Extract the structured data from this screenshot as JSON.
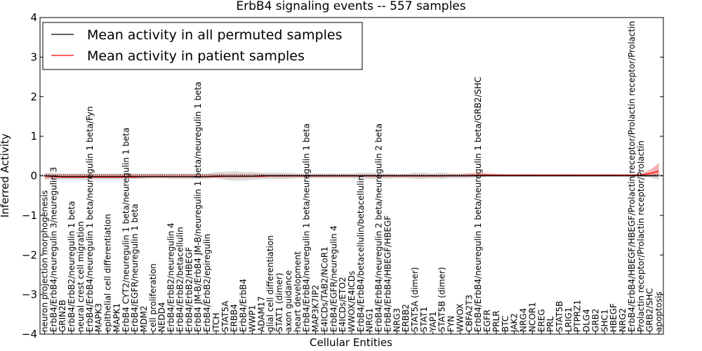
{
  "chart_data": {
    "type": "line",
    "title": "ErbB4 signaling events -- 557 samples",
    "xlabel": "Cellular Entities",
    "ylabel": "Inferred Activity",
    "ylim": [
      -4,
      4
    ],
    "yticks": [
      -4,
      -3,
      -2,
      -1,
      0,
      1,
      2,
      3,
      4
    ],
    "grid": false,
    "legend_position": "top-left",
    "legend": [
      {
        "label": "Mean activity in all permuted samples",
        "color": "#000000"
      },
      {
        "label": "Mean activity in patient samples",
        "color": "#ff0000"
      }
    ],
    "categories": [
      "neuron projection morphogenesis",
      "ErbB4/ErbB4/neuregulin 3/neuregulin 3",
      "GRIN2B",
      "ErbB4/ErbB2/neuregulin 1 beta",
      "neural crest cell migration",
      "ErbB4/ErbB4/neuregulin 1 beta/neuregulin 1 beta/Fyn",
      "MAPK3",
      "epithelial cell differentiation",
      "MAPK1",
      "ErbB4 CYT2/neuregulin 1 beta/neuregulin 1 beta",
      "ErbB4/EGFR/neuregulin 1 beta",
      "MDM2",
      "cell proliferation",
      "NEDD4",
      "ErbB4/ErbB2/neuregulin 4",
      "ErbB4/ErbB2/betacellulin",
      "ErbB4/ErbB2/HBEGF",
      "ErbB4 JM-B/ErbB4 JM-B/neuregulin 1 beta/neuregulin 1 beta",
      "ErbB4/ErbB2/epiregulin",
      "ITCH",
      "STAT5A",
      "ERBB4",
      "ErbB4/ErbB4",
      "WWP1",
      "ADAM17",
      "glial cell differentiation",
      "STAT1 (dimer)",
      "axon guidance",
      "heart development",
      "ErbB4/ErbB4/neuregulin 1 beta/neuregulin 1 beta",
      "MAP3K7IP2",
      "E4ICDs/TAB2/NCoR1",
      "ErbB4/EGFR/neuregulin 4",
      "E4ICDs/ETO2",
      "WWOX/E4ICDs",
      "ErbB4/ErbB4/betacellulin/betacellulin",
      "NRG1",
      "ErbB4/ErbB4/neuregulin 2 beta/neuregulin 2 beta",
      "ErbB4/ErbB4/HBEGF/HBEGF",
      "NRG3",
      "ERBB2",
      "STAT5A (dimer)",
      "STAT1",
      "YAP1",
      "STAT5B (dimer)",
      "FYN",
      "WWOX",
      "CBFA2T3",
      "ErbB4/ErbB4/neuregulin 1 beta/neuregulin 1 beta/GRB2/SHC",
      "EGFR",
      "PRLR",
      "BTC",
      "JAK2",
      "NRG4",
      "NCOR1",
      "EREG",
      "PRL",
      "STAT5B",
      "LRIG1",
      "PTPRZ1",
      "DLG4",
      "GRB2",
      "SHC1",
      "HBEGF",
      "NRG2",
      "ErbB4/ErbB4/HBEGF/HBEGF/Prolactin receptor/Prolactin receptor/Prolactin",
      "Prolactin receptor/Prolactin receptor/Prolactin",
      "GRB2/SHC",
      "apoptosis"
    ],
    "series": [
      {
        "name": "Mean activity in all permuted samples",
        "color": "#000000",
        "values": [
          0.0,
          -0.01,
          -0.02,
          -0.02,
          -0.02,
          -0.02,
          -0.02,
          -0.02,
          -0.02,
          -0.02,
          -0.02,
          -0.02,
          -0.02,
          -0.02,
          -0.02,
          -0.02,
          -0.02,
          -0.02,
          -0.02,
          -0.01,
          -0.01,
          -0.01,
          -0.01,
          -0.01,
          0.0,
          0.0,
          0.0,
          0.0,
          0.0,
          0.0,
          0.0,
          0.0,
          0.0,
          0.0,
          0.0,
          0.0,
          0.0,
          0.0,
          0.0,
          0.0,
          0.0,
          0.0,
          0.0,
          0.0,
          0.0,
          0.0,
          0.0,
          0.0,
          0.0,
          0.0,
          0.0,
          0.0,
          0.0,
          0.0,
          0.0,
          0.0,
          0.0,
          0.0,
          0.0,
          0.0,
          0.0,
          0.0,
          0.0,
          0.0,
          0.0,
          0.0,
          0.0,
          0.0,
          0.0
        ],
        "band_low": [
          -0.1,
          -0.1,
          -0.1,
          -0.1,
          -0.1,
          -0.1,
          -0.1,
          -0.1,
          -0.1,
          -0.08,
          -0.08,
          -0.08,
          -0.06,
          -0.06,
          -0.08,
          -0.08,
          -0.08,
          -0.08,
          -0.08,
          -0.06,
          -0.1,
          -0.12,
          -0.12,
          -0.1,
          -0.08,
          -0.08,
          -0.08,
          -0.08,
          -0.06,
          -0.06,
          -0.06,
          -0.06,
          -0.06,
          -0.06,
          -0.06,
          -0.08,
          -0.08,
          -0.08,
          -0.08,
          -0.06,
          -0.06,
          -0.08,
          -0.08,
          -0.06,
          -0.08,
          -0.06,
          -0.06,
          -0.06,
          -0.04,
          -0.02,
          -0.02,
          -0.02,
          -0.02,
          -0.02,
          -0.02,
          -0.02,
          -0.02,
          -0.02,
          -0.02,
          -0.02,
          -0.02,
          -0.02,
          -0.02,
          -0.02,
          -0.02,
          -0.02,
          -0.02,
          -0.04,
          -0.1
        ],
        "band_high": [
          0.08,
          0.08,
          0.06,
          0.06,
          0.06,
          0.06,
          0.06,
          0.06,
          0.06,
          0.06,
          0.06,
          0.06,
          0.06,
          0.06,
          0.06,
          0.06,
          0.06,
          0.06,
          0.06,
          0.1,
          0.1,
          0.12,
          0.1,
          0.1,
          0.08,
          0.08,
          0.08,
          0.08,
          0.06,
          0.06,
          0.06,
          0.06,
          0.06,
          0.06,
          0.06,
          0.08,
          0.08,
          0.06,
          0.06,
          0.05,
          0.05,
          0.08,
          0.08,
          0.06,
          0.08,
          0.06,
          0.06,
          0.06,
          0.04,
          0.04,
          0.02,
          0.02,
          0.02,
          0.02,
          0.02,
          0.02,
          0.02,
          0.02,
          0.02,
          0.02,
          0.02,
          0.02,
          0.02,
          0.02,
          0.02,
          0.02,
          0.02,
          0.04,
          0.1
        ]
      },
      {
        "name": "Mean activity in patient samples",
        "color": "#ff0000",
        "values": [
          0.0,
          -0.02,
          -0.03,
          -0.03,
          -0.03,
          -0.03,
          -0.03,
          -0.03,
          -0.03,
          -0.03,
          -0.03,
          -0.02,
          -0.02,
          -0.02,
          -0.02,
          -0.02,
          -0.02,
          -0.02,
          -0.02,
          -0.02,
          -0.01,
          -0.01,
          -0.01,
          -0.01,
          -0.01,
          0.0,
          0.0,
          0.0,
          0.0,
          0.0,
          0.0,
          0.0,
          0.0,
          0.0,
          0.0,
          0.0,
          0.0,
          0.0,
          0.0,
          0.0,
          0.0,
          0.0,
          0.0,
          0.0,
          0.0,
          0.0,
          0.0,
          0.0,
          0.02,
          0.02,
          0.02,
          0.02,
          0.02,
          0.02,
          0.02,
          0.02,
          0.02,
          0.02,
          0.02,
          0.02,
          0.02,
          0.02,
          0.02,
          0.02,
          0.02,
          0.02,
          0.02,
          0.06,
          0.12
        ],
        "band_low": [
          -0.06,
          -0.06,
          -0.06,
          -0.06,
          -0.06,
          -0.06,
          -0.06,
          -0.06,
          -0.06,
          -0.06,
          -0.06,
          -0.05,
          -0.05,
          -0.05,
          -0.05,
          -0.05,
          -0.05,
          -0.05,
          -0.05,
          -0.05,
          -0.05,
          -0.05,
          -0.05,
          -0.04,
          -0.04,
          -0.03,
          -0.03,
          -0.03,
          -0.03,
          -0.03,
          -0.03,
          -0.03,
          -0.03,
          -0.03,
          -0.03,
          -0.03,
          -0.03,
          -0.03,
          -0.03,
          -0.03,
          -0.03,
          -0.03,
          -0.03,
          -0.03,
          -0.03,
          -0.02,
          -0.02,
          -0.02,
          -0.01,
          -0.01,
          0.0,
          0.0,
          0.0,
          0.0,
          0.0,
          0.0,
          0.0,
          0.0,
          0.0,
          0.0,
          0.0,
          0.0,
          0.0,
          0.0,
          0.0,
          0.0,
          0.0,
          0.0,
          0.0
        ],
        "band_high": [
          0.04,
          0.04,
          0.04,
          0.04,
          0.04,
          0.04,
          0.04,
          0.04,
          0.04,
          0.04,
          0.04,
          0.04,
          0.04,
          0.04,
          0.04,
          0.04,
          0.04,
          0.04,
          0.04,
          0.04,
          0.04,
          0.04,
          0.04,
          0.04,
          0.04,
          0.03,
          0.03,
          0.03,
          0.03,
          0.03,
          0.03,
          0.03,
          0.03,
          0.03,
          0.03,
          0.03,
          0.03,
          0.03,
          0.03,
          0.03,
          0.03,
          0.03,
          0.03,
          0.03,
          0.03,
          0.04,
          0.04,
          0.06,
          0.08,
          0.06,
          0.05,
          0.04,
          0.04,
          0.04,
          0.04,
          0.04,
          0.04,
          0.04,
          0.04,
          0.04,
          0.04,
          0.04,
          0.04,
          0.04,
          0.04,
          0.04,
          0.05,
          0.15,
          0.32
        ]
      }
    ]
  }
}
